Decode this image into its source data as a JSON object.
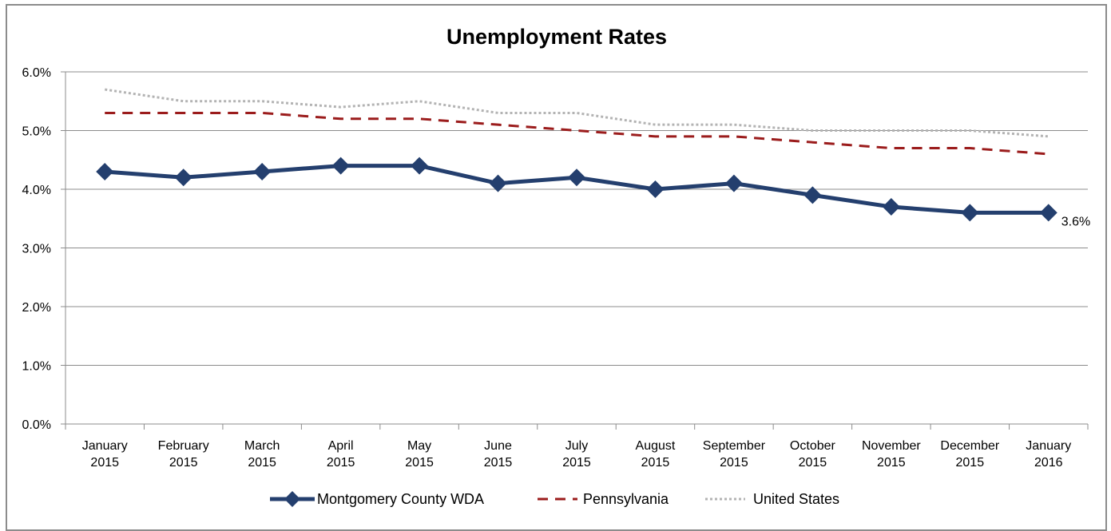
{
  "chart_data": {
    "type": "line",
    "title": "Unemployment Rates",
    "xlabel": "",
    "ylabel": "",
    "categories": [
      [
        "January",
        "2015"
      ],
      [
        "February",
        "2015"
      ],
      [
        "March",
        "2015"
      ],
      [
        "April",
        "2015"
      ],
      [
        "May",
        "2015"
      ],
      [
        "June",
        "2015"
      ],
      [
        "July",
        "2015"
      ],
      [
        "August",
        "2015"
      ],
      [
        "September",
        "2015"
      ],
      [
        "October",
        "2015"
      ],
      [
        "November",
        "2015"
      ],
      [
        "December",
        "2015"
      ],
      [
        "January",
        "2016"
      ]
    ],
    "ylim": [
      0,
      6
    ],
    "yticks": [
      "0.0%",
      "1.0%",
      "2.0%",
      "3.0%",
      "4.0%",
      "5.0%",
      "6.0%"
    ],
    "grid": true,
    "legend_position": "bottom",
    "series": [
      {
        "name": "Montgomery County WDA",
        "values": [
          4.3,
          4.2,
          4.3,
          4.4,
          4.4,
          4.1,
          4.2,
          4.0,
          4.1,
          3.9,
          3.7,
          3.6,
          3.6
        ],
        "color": "#243f6e",
        "style": "solid-diamond",
        "last_label": "3.6%"
      },
      {
        "name": "Pennsylvania",
        "values": [
          5.3,
          5.3,
          5.3,
          5.2,
          5.2,
          5.1,
          5.0,
          4.9,
          4.9,
          4.8,
          4.7,
          4.7,
          4.6
        ],
        "color": "#9b1c1c",
        "style": "dashed"
      },
      {
        "name": "United States",
        "values": [
          5.7,
          5.5,
          5.5,
          5.4,
          5.5,
          5.3,
          5.3,
          5.1,
          5.1,
          5.0,
          5.0,
          5.0,
          4.9
        ],
        "color": "#b3b3b3",
        "style": "dotted"
      }
    ]
  }
}
